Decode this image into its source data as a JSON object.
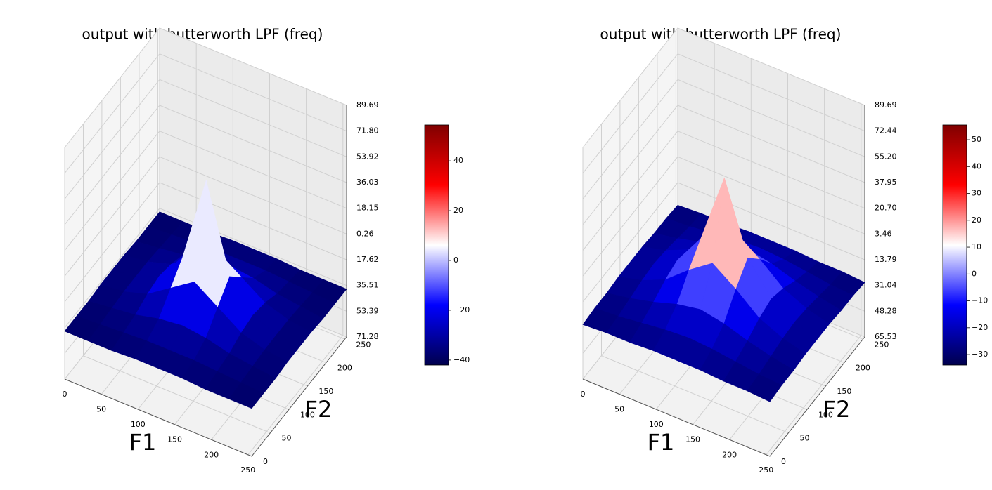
{
  "chart_data": [
    {
      "type": "surface3d",
      "title": "output with butterworth LPF (freq)",
      "x_label": "F1",
      "y_label": "F2",
      "colormap": "seismic",
      "x": [
        0,
        32,
        64,
        96,
        128,
        160,
        192,
        224,
        255
      ],
      "y": [
        0,
        32,
        64,
        96,
        128,
        160,
        192,
        224,
        255
      ],
      "z": [
        [
          -38,
          -38,
          -38,
          -37,
          -37,
          -37,
          -38,
          -38,
          -38
        ],
        [
          -38,
          -37,
          -36,
          -35,
          -35,
          -35,
          -36,
          -37,
          -38
        ],
        [
          -38,
          -36,
          -34,
          -30,
          -28,
          -30,
          -34,
          -36,
          -38
        ],
        [
          -37,
          -35,
          -30,
          -19,
          -8,
          -19,
          -30,
          -35,
          -37
        ],
        [
          -37,
          -35,
          -28,
          -8,
          52,
          -8,
          -28,
          -35,
          -37
        ],
        [
          -37,
          -35,
          -30,
          -19,
          -8,
          -19,
          -30,
          -35,
          -37
        ],
        [
          -38,
          -36,
          -34,
          -30,
          -28,
          -30,
          -34,
          -36,
          -38
        ],
        [
          -38,
          -37,
          -36,
          -35,
          -35,
          -35,
          -36,
          -37,
          -38
        ],
        [
          -38,
          -38,
          -38,
          -37,
          -37,
          -37,
          -38,
          -38,
          -38
        ]
      ],
      "xlim": [
        0,
        255
      ],
      "ylim": [
        0,
        255
      ],
      "xticks": [
        0,
        50,
        100,
        150,
        200,
        250
      ],
      "yticks": [
        0,
        50,
        100,
        150,
        200,
        250
      ],
      "zlim": [
        -71.28,
        89.69
      ],
      "zticks": [
        89.69,
        {
          "value": 71.8,
          "label": "71.80"
        },
        53.92,
        36.03,
        18.15,
        0.26,
        {
          "value": -17.62,
          "label": "17.62"
        },
        {
          "value": -35.51,
          "label": "35.51"
        },
        {
          "value": -53.39,
          "label": "53.39"
        },
        {
          "value": -71.28,
          "label": "71.28"
        }
      ],
      "clim": [
        -42,
        54.4
      ],
      "cticks": [
        40,
        20,
        0,
        {
          "value": -20,
          "label": "−20"
        },
        {
          "value": -40,
          "label": "−40"
        }
      ]
    },
    {
      "type": "surface3d",
      "title": "output with butterworth LPF (freq)",
      "x_label": "F1",
      "y_label": "F2",
      "colormap": "seismic",
      "x": [
        0,
        32,
        64,
        96,
        128,
        160,
        192,
        224,
        255
      ],
      "y": [
        0,
        32,
        64,
        96,
        128,
        160,
        192,
        224,
        255
      ],
      "z": [
        [
          -29,
          -28,
          -28,
          -27,
          -27,
          -27,
          -28,
          -28,
          -29
        ],
        [
          -28,
          -27,
          -25,
          -23,
          -22,
          -23,
          -25,
          -27,
          -28
        ],
        [
          -28,
          -25,
          -21,
          -16,
          -13,
          -16,
          -21,
          -25,
          -28
        ],
        [
          -27,
          -23,
          -16,
          -3,
          8,
          -3,
          -16,
          -23,
          -27
        ],
        [
          -27,
          -22,
          -13,
          8,
          55,
          8,
          -13,
          -22,
          -27
        ],
        [
          -27,
          -23,
          -16,
          -3,
          8,
          -3,
          -16,
          -23,
          -27
        ],
        [
          -28,
          -25,
          -21,
          -16,
          -13,
          -16,
          -21,
          -25,
          -28
        ],
        [
          -28,
          -27,
          -25,
          -23,
          -22,
          -23,
          -25,
          -27,
          -28
        ],
        [
          -29,
          -28,
          -28,
          -27,
          -27,
          -27,
          -28,
          -28,
          -29
        ]
      ],
      "xlim": [
        0,
        255
      ],
      "ylim": [
        0,
        255
      ],
      "xticks": [
        0,
        50,
        100,
        150,
        200,
        250
      ],
      "yticks": [
        0,
        50,
        100,
        150,
        200,
        250
      ],
      "zlim": [
        -65.53,
        89.69
      ],
      "zticks": [
        89.69,
        72.44,
        {
          "value": 55.2,
          "label": "55.20"
        },
        37.95,
        {
          "value": 20.7,
          "label": "20.70"
        },
        3.46,
        {
          "value": -13.79,
          "label": "13.79"
        },
        {
          "value": -31.04,
          "label": "31.04"
        },
        {
          "value": -48.28,
          "label": "48.28"
        },
        {
          "value": -65.53,
          "label": "65.53"
        }
      ],
      "clim": [
        -33.9,
        55.5
      ],
      "cticks": [
        50,
        40,
        30,
        20,
        10,
        0,
        {
          "value": -10,
          "label": "−10"
        },
        {
          "value": -20,
          "label": "−20"
        },
        {
          "value": -30,
          "label": "−30"
        }
      ]
    }
  ]
}
